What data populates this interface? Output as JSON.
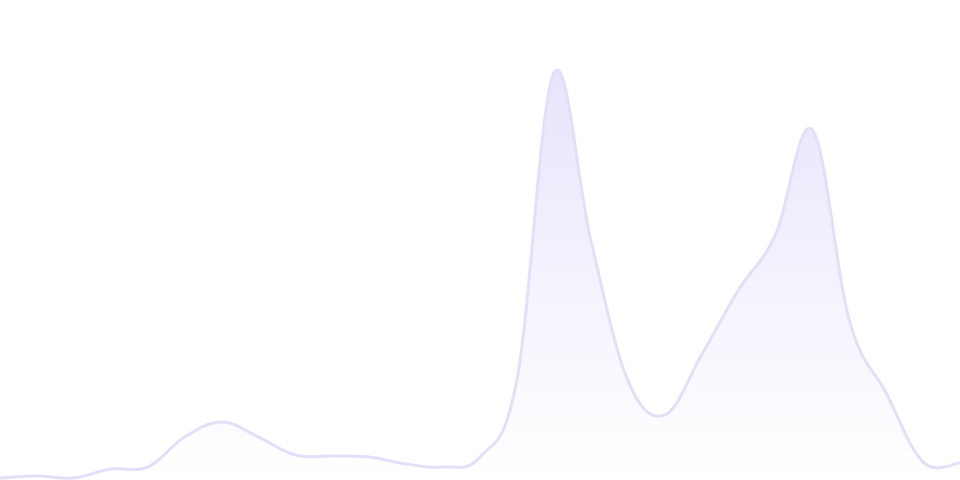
{
  "chart_data": {
    "type": "area",
    "title": "",
    "xlabel": "",
    "ylabel": "",
    "x": [
      0,
      1,
      2,
      3,
      4,
      5,
      6,
      7,
      8,
      9,
      10,
      11,
      12,
      13,
      14,
      15,
      16,
      17,
      18,
      19,
      20,
      21,
      22,
      23,
      24,
      25,
      26
    ],
    "series": [
      {
        "values": [
          2,
          4,
          2,
          11,
          13,
          43,
          58,
          43,
          25,
          24,
          23,
          16,
          13,
          23,
          100,
          407,
          240,
          100,
          65,
          125,
          190,
          245,
          350,
          160,
          87,
          18,
          17
        ]
      }
    ],
    "ylim": [
      0,
      480
    ],
    "grid": false,
    "axes_visible": false,
    "legend": "none",
    "colors": {
      "stroke": "#e4dff8",
      "fill_top": "#e9e4fb",
      "fill_bottom": "#ffffff"
    }
  }
}
